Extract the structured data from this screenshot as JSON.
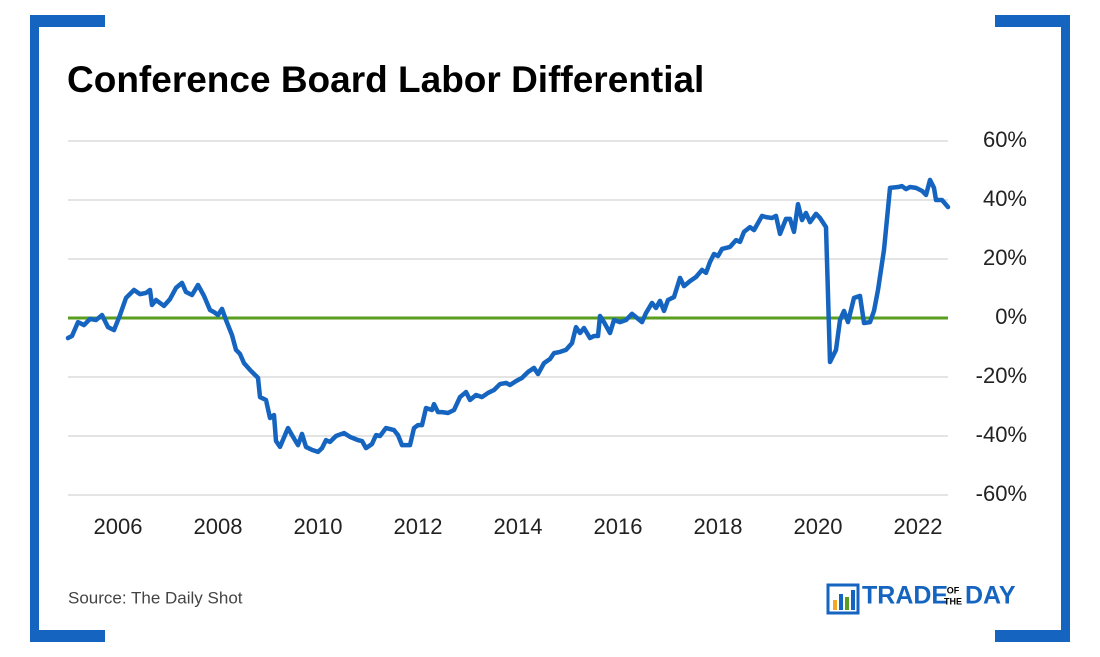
{
  "chart_data": {
    "type": "line",
    "title": "Conference Board Labor Differential",
    "source": "Source: The Daily Shot",
    "color": "#1565c0",
    "zero_line": {
      "value": 0,
      "color": "#5a9e1f"
    },
    "grid": true,
    "xlim": [
      2005,
      2022.6
    ],
    "xticks": [
      2006,
      2008,
      2010,
      2012,
      2014,
      2016,
      2018,
      2020,
      2022
    ],
    "ylim": [
      -60,
      60
    ],
    "yticks": [
      {
        "value": 60,
        "label": "60%"
      },
      {
        "value": 40,
        "label": "40%"
      },
      {
        "value": 20,
        "label": "20%"
      },
      {
        "value": 0,
        "label": "0%"
      },
      {
        "value": -20,
        "label": "-20%"
      },
      {
        "value": -40,
        "label": "-40%"
      },
      {
        "value": -60,
        "label": "-60%"
      }
    ],
    "x": [
      2005.0,
      2005.08,
      2005.2,
      2005.32,
      2005.44,
      2005.56,
      2005.68,
      2005.8,
      2005.92,
      2006.04,
      2006.16,
      2006.32,
      2006.44,
      2006.56,
      2006.64,
      2006.68,
      2006.76,
      2006.92,
      2007.04,
      2007.16,
      2007.28,
      2007.36,
      2007.48,
      2007.6,
      2007.72,
      2007.84,
      2007.92,
      2008.0,
      2008.08,
      2008.16,
      2008.28,
      2008.36,
      2008.44,
      2008.52,
      2008.64,
      2008.8,
      2008.84,
      2008.96,
      2009.04,
      2009.12,
      2009.16,
      2009.24,
      2009.4,
      2009.48,
      2009.6,
      2009.68,
      2009.76,
      2009.88,
      2010.0,
      2010.08,
      2010.16,
      2010.24,
      2010.36,
      2010.52,
      2010.64,
      2010.8,
      2010.88,
      2010.96,
      2011.08,
      2011.16,
      2011.24,
      2011.36,
      2011.52,
      2011.6,
      2011.68,
      2011.84,
      2011.92,
      2012.0,
      2012.08,
      2012.16,
      2012.28,
      2012.32,
      2012.4,
      2012.48,
      2012.6,
      2012.72,
      2012.84,
      2012.96,
      2013.04,
      2013.16,
      2013.28,
      2013.4,
      2013.52,
      2013.64,
      2013.76,
      2013.84,
      2013.96,
      2014.08,
      2014.2,
      2014.32,
      2014.4,
      2014.52,
      2014.64,
      2014.72,
      2014.84,
      2014.96,
      2015.08,
      2015.16,
      2015.24,
      2015.32,
      2015.44,
      2015.52,
      2015.6,
      2015.64,
      2015.72,
      2015.84,
      2015.92,
      2016.04,
      2016.16,
      2016.28,
      2016.36,
      2016.48,
      2016.56,
      2016.68,
      2016.76,
      2016.84,
      2016.92,
      2017.0,
      2017.12,
      2017.24,
      2017.32,
      2017.44,
      2017.56,
      2017.68,
      2017.76,
      2017.84,
      2017.92,
      2018.0,
      2018.08,
      2018.24,
      2018.36,
      2018.44,
      2018.52,
      2018.64,
      2018.72,
      2018.88,
      2018.96,
      2019.08,
      2019.16,
      2019.24,
      2019.36,
      2019.44,
      2019.52,
      2019.6,
      2019.68,
      2019.76,
      2019.84,
      2019.96,
      2020.04,
      2020.16,
      2020.24,
      2020.36,
      2020.44,
      2020.52,
      2020.6,
      2020.72,
      2020.84,
      2020.92,
      2021.04,
      2021.12,
      2021.2,
      2021.32,
      2021.44,
      2021.6,
      2021.68,
      2021.76,
      2021.84,
      2021.96,
      2022.08,
      2022.16,
      2022.24,
      2022.32,
      2022.36,
      2022.48,
      2022.6
    ],
    "values": [
      -6.8,
      -6.1,
      -1.4,
      -2.4,
      -0.3,
      -0.7,
      1.0,
      -3.1,
      -4.1,
      1.0,
      6.8,
      9.5,
      8.1,
      8.5,
      9.5,
      4.4,
      6.1,
      4.1,
      6.4,
      10.2,
      11.9,
      8.8,
      7.8,
      11.2,
      7.5,
      2.7,
      2.0,
      1.0,
      3.1,
      -0.7,
      -5.8,
      -10.8,
      -12.2,
      -15.3,
      -17.6,
      -20.3,
      -26.8,
      -27.8,
      -33.9,
      -32.9,
      -41.7,
      -43.7,
      -37.3,
      -39.7,
      -43.1,
      -39.3,
      -43.7,
      -44.7,
      -45.4,
      -44.1,
      -41.4,
      -42.0,
      -40.0,
      -39.0,
      -40.3,
      -41.4,
      -41.7,
      -44.1,
      -42.7,
      -39.7,
      -40.0,
      -37.3,
      -38.0,
      -39.7,
      -43.1,
      -43.1,
      -37.3,
      -36.3,
      -36.3,
      -30.5,
      -31.2,
      -29.2,
      -31.9,
      -31.9,
      -32.2,
      -31.2,
      -26.8,
      -25.1,
      -27.8,
      -26.1,
      -26.8,
      -25.4,
      -24.4,
      -22.4,
      -22.0,
      -22.7,
      -21.4,
      -20.3,
      -18.3,
      -16.9,
      -19.0,
      -15.3,
      -13.9,
      -11.9,
      -11.5,
      -10.8,
      -8.5,
      -3.1,
      -5.1,
      -3.4,
      -6.8,
      -6.1,
      -6.1,
      0.7,
      -1.4,
      -5.1,
      -0.7,
      -1.4,
      -0.7,
      1.4,
      0.3,
      -1.4,
      1.7,
      5.1,
      3.4,
      5.8,
      2.4,
      6.1,
      7.1,
      13.6,
      10.8,
      12.5,
      13.9,
      16.3,
      15.3,
      19.0,
      21.7,
      21.0,
      23.4,
      24.1,
      26.4,
      25.8,
      29.2,
      30.8,
      29.8,
      34.6,
      34.2,
      33.9,
      34.6,
      28.5,
      33.6,
      33.6,
      29.2,
      38.6,
      33.2,
      35.6,
      32.5,
      35.3,
      33.9,
      30.8,
      -14.9,
      -10.8,
      -0.7,
      2.4,
      -1.4,
      6.8,
      7.5,
      -1.7,
      -1.4,
      2.4,
      9.5,
      23.1,
      44.1,
      44.4,
      44.7,
      43.7,
      44.4,
      44.1,
      43.1,
      41.7,
      46.8,
      44.1,
      40.0,
      40.0,
      37.6
    ]
  },
  "branding": {
    "trade": "TRADE",
    "of": "OF",
    "the": "THE",
    "day": "DAY"
  }
}
